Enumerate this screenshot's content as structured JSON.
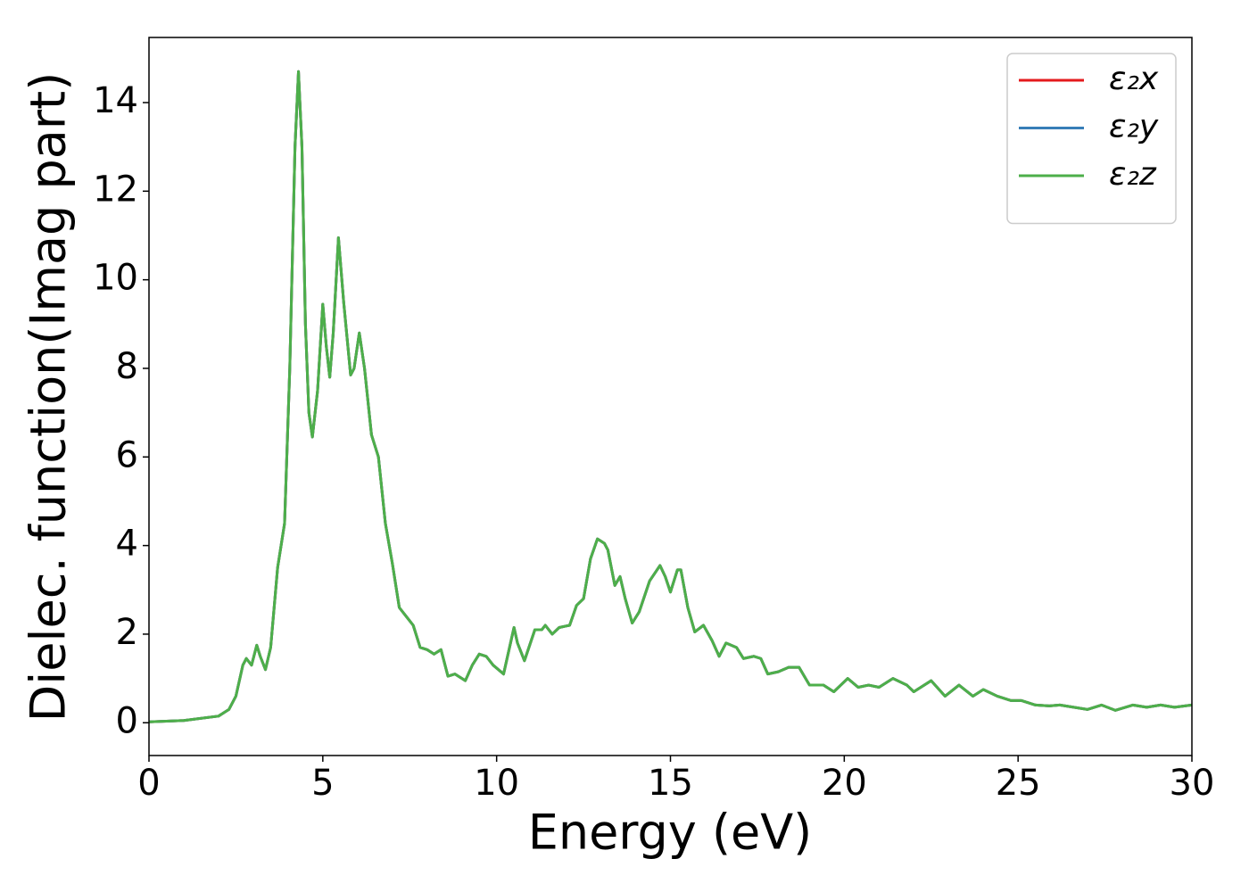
{
  "chart_data": {
    "type": "line",
    "xlabel": "Energy (eV)",
    "ylabel": "Dielec. function(Imag part)",
    "x": [
      0,
      1,
      2,
      2.3,
      2.5,
      2.7,
      2.8,
      2.95,
      3.1,
      3.2,
      3.35,
      3.5,
      3.7,
      3.9,
      4.05,
      4.2,
      4.3,
      4.4,
      4.5,
      4.6,
      4.7,
      4.85,
      5.0,
      5.1,
      5.2,
      5.3,
      5.45,
      5.6,
      5.8,
      5.9,
      6.05,
      6.2,
      6.4,
      6.6,
      6.8,
      7.0,
      7.2,
      7.4,
      7.6,
      7.8,
      8.0,
      8.2,
      8.4,
      8.6,
      8.8,
      9.1,
      9.3,
      9.5,
      9.7,
      9.9,
      10.2,
      10.4,
      10.5,
      10.6,
      10.8,
      11.1,
      11.3,
      11.4,
      11.6,
      11.8,
      12.1,
      12.3,
      12.5,
      12.7,
      12.9,
      13.1,
      13.2,
      13.4,
      13.55,
      13.7,
      13.9,
      14.1,
      14.4,
      14.7,
      14.85,
      15.0,
      15.2,
      15.3,
      15.5,
      15.7,
      15.95,
      16.2,
      16.4,
      16.6,
      16.9,
      17.1,
      17.4,
      17.6,
      17.8,
      18.1,
      18.4,
      18.7,
      19.0,
      19.4,
      19.7,
      20.1,
      20.4,
      20.7,
      21.0,
      21.4,
      21.8,
      22.0,
      22.5,
      22.9,
      23.3,
      23.7,
      24.0,
      24.4,
      24.8,
      25.1,
      25.5,
      25.9,
      26.2,
      26.6,
      27.0,
      27.4,
      27.8,
      28.3,
      28.7,
      29.1,
      29.5,
      30
    ],
    "series": [
      {
        "name": "ε₂x",
        "color": "#e41a1c",
        "values": [
          0.02,
          0.05,
          0.15,
          0.3,
          0.6,
          1.3,
          1.45,
          1.3,
          1.75,
          1.5,
          1.2,
          1.7,
          3.5,
          4.5,
          8,
          13,
          14.7,
          13,
          9,
          7,
          6.45,
          7.5,
          9.45,
          8.5,
          7.8,
          8.8,
          10.95,
          9.5,
          7.85,
          8,
          8.8,
          8,
          6.5,
          6,
          4.5,
          3.6,
          2.6,
          2.4,
          2.2,
          1.7,
          1.65,
          1.55,
          1.65,
          1.05,
          1.1,
          0.95,
          1.3,
          1.55,
          1.5,
          1.3,
          1.1,
          1.8,
          2.15,
          1.8,
          1.4,
          2.1,
          2.1,
          2.2,
          2.0,
          2.15,
          2.2,
          2.65,
          2.8,
          3.7,
          4.15,
          4.05,
          3.9,
          3.1,
          3.3,
          2.8,
          2.25,
          2.5,
          3.2,
          3.55,
          3.3,
          2.95,
          3.45,
          3.45,
          2.6,
          2.05,
          2.2,
          1.85,
          1.5,
          1.8,
          1.7,
          1.45,
          1.5,
          1.45,
          1.1,
          1.15,
          1.25,
          1.25,
          0.85,
          0.85,
          0.7,
          1.0,
          0.8,
          0.85,
          0.8,
          1.0,
          0.85,
          0.7,
          0.95,
          0.6,
          0.85,
          0.6,
          0.75,
          0.6,
          0.5,
          0.5,
          0.4,
          0.38,
          0.4,
          0.35,
          0.3,
          0.4,
          0.28,
          0.4,
          0.35,
          0.4,
          0.35,
          0.4
        ]
      },
      {
        "name": "ε₂y",
        "color": "#377eb8",
        "values": [
          0.02,
          0.05,
          0.15,
          0.3,
          0.6,
          1.3,
          1.45,
          1.3,
          1.75,
          1.5,
          1.2,
          1.7,
          3.5,
          4.5,
          8,
          13,
          14.7,
          13,
          9,
          7,
          6.45,
          7.5,
          9.45,
          8.5,
          7.8,
          8.8,
          10.95,
          9.5,
          7.85,
          8,
          8.8,
          8,
          6.5,
          6,
          4.5,
          3.6,
          2.6,
          2.4,
          2.2,
          1.7,
          1.65,
          1.55,
          1.65,
          1.05,
          1.1,
          0.95,
          1.3,
          1.55,
          1.5,
          1.3,
          1.1,
          1.8,
          2.15,
          1.8,
          1.4,
          2.1,
          2.1,
          2.2,
          2.0,
          2.15,
          2.2,
          2.65,
          2.8,
          3.7,
          4.15,
          4.05,
          3.9,
          3.1,
          3.3,
          2.8,
          2.25,
          2.5,
          3.2,
          3.55,
          3.3,
          2.95,
          3.45,
          3.45,
          2.6,
          2.05,
          2.2,
          1.85,
          1.5,
          1.8,
          1.7,
          1.45,
          1.5,
          1.45,
          1.1,
          1.15,
          1.25,
          1.25,
          0.85,
          0.85,
          0.7,
          1.0,
          0.8,
          0.85,
          0.8,
          1.0,
          0.85,
          0.7,
          0.95,
          0.6,
          0.85,
          0.6,
          0.75,
          0.6,
          0.5,
          0.5,
          0.4,
          0.38,
          0.4,
          0.35,
          0.3,
          0.4,
          0.28,
          0.4,
          0.35,
          0.4,
          0.35,
          0.4
        ]
      },
      {
        "name": "ε₂z",
        "color": "#4daf4a",
        "values": [
          0.02,
          0.05,
          0.15,
          0.3,
          0.6,
          1.3,
          1.45,
          1.3,
          1.75,
          1.5,
          1.2,
          1.7,
          3.5,
          4.5,
          8,
          13,
          14.7,
          13,
          9,
          7,
          6.45,
          7.5,
          9.45,
          8.5,
          7.8,
          8.8,
          10.95,
          9.5,
          7.85,
          8,
          8.8,
          8,
          6.5,
          6,
          4.5,
          3.6,
          2.6,
          2.4,
          2.2,
          1.7,
          1.65,
          1.55,
          1.65,
          1.05,
          1.1,
          0.95,
          1.3,
          1.55,
          1.5,
          1.3,
          1.1,
          1.8,
          2.15,
          1.8,
          1.4,
          2.1,
          2.1,
          2.2,
          2.0,
          2.15,
          2.2,
          2.65,
          2.8,
          3.7,
          4.15,
          4.05,
          3.9,
          3.1,
          3.3,
          2.8,
          2.25,
          2.5,
          3.2,
          3.55,
          3.3,
          2.95,
          3.45,
          3.45,
          2.6,
          2.05,
          2.2,
          1.85,
          1.5,
          1.8,
          1.7,
          1.45,
          1.5,
          1.45,
          1.1,
          1.15,
          1.25,
          1.25,
          0.85,
          0.85,
          0.7,
          1.0,
          0.8,
          0.85,
          0.8,
          1.0,
          0.85,
          0.7,
          0.95,
          0.6,
          0.85,
          0.6,
          0.75,
          0.6,
          0.5,
          0.5,
          0.4,
          0.38,
          0.4,
          0.35,
          0.3,
          0.4,
          0.28,
          0.4,
          0.35,
          0.4,
          0.35,
          0.4
        ]
      }
    ],
    "xlim": [
      0,
      30
    ],
    "xticks": [
      0,
      5,
      10,
      15,
      20,
      25,
      30
    ],
    "ylim": [
      -0.74,
      15.47
    ],
    "yticks": [
      0,
      2,
      4,
      6,
      8,
      10,
      12,
      14
    ],
    "legend": "upper right",
    "grid": false
  }
}
